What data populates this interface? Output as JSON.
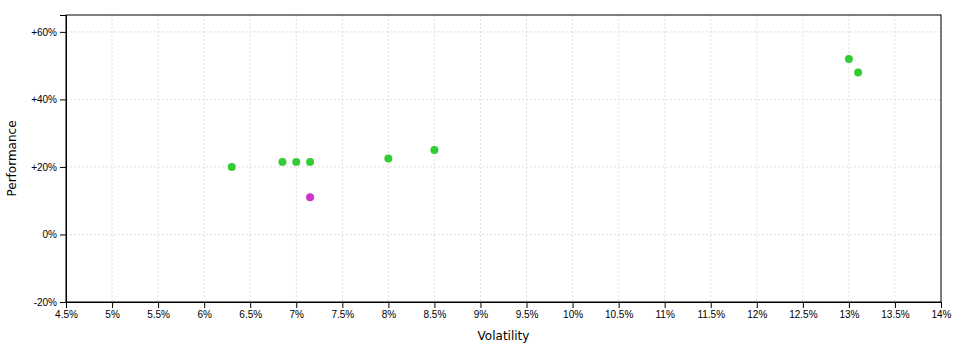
{
  "chart_data": {
    "type": "scatter",
    "xlabel": "Volatility",
    "ylabel": "Performance",
    "series": [
      {
        "color": "#33cc33",
        "marker": "circle",
        "x": [
          6.3,
          6.85,
          7.0,
          7.15,
          8.0,
          8.5,
          13.0,
          13.1
        ],
        "values": [
          20.0,
          21.5,
          21.5,
          21.5,
          22.5,
          25.0,
          52.0,
          48.0
        ]
      },
      {
        "color": "#cc33cc",
        "marker": "circle",
        "x": [
          7.15
        ],
        "values": [
          11.0
        ]
      }
    ],
    "xlim": [
      4.5,
      14.0
    ],
    "ylim": [
      -20,
      65
    ],
    "xticks": [
      {
        "value": 4.5,
        "label": "4.5%"
      },
      {
        "value": 5.0,
        "label": "5%"
      },
      {
        "value": 5.5,
        "label": "5.5%"
      },
      {
        "value": 6.0,
        "label": "6%"
      },
      {
        "value": 6.5,
        "label": "6.5%"
      },
      {
        "value": 7.0,
        "label": "7%"
      },
      {
        "value": 7.5,
        "label": "7.5%"
      },
      {
        "value": 8.0,
        "label": "8%"
      },
      {
        "value": 8.5,
        "label": "8.5%"
      },
      {
        "value": 9.0,
        "label": "9%"
      },
      {
        "value": 9.5,
        "label": "9.5%"
      },
      {
        "value": 10.0,
        "label": "10%"
      },
      {
        "value": 10.5,
        "label": "10.5%"
      },
      {
        "value": 11.0,
        "label": "11%"
      },
      {
        "value": 11.5,
        "label": "11.5%"
      },
      {
        "value": 12.0,
        "label": "12%"
      },
      {
        "value": 12.5,
        "label": "12.5%"
      },
      {
        "value": 13.0,
        "label": "13%"
      },
      {
        "value": 13.5,
        "label": "13.5%"
      },
      {
        "value": 14.0,
        "label": "14%"
      }
    ],
    "yticks": [
      {
        "value": -20,
        "label": "-20%"
      },
      {
        "value": 0,
        "label": "0%"
      },
      {
        "value": 20,
        "label": "+20%"
      },
      {
        "value": 40,
        "label": "+40%"
      },
      {
        "value": 60,
        "label": "+60%"
      }
    ],
    "grid": true
  }
}
